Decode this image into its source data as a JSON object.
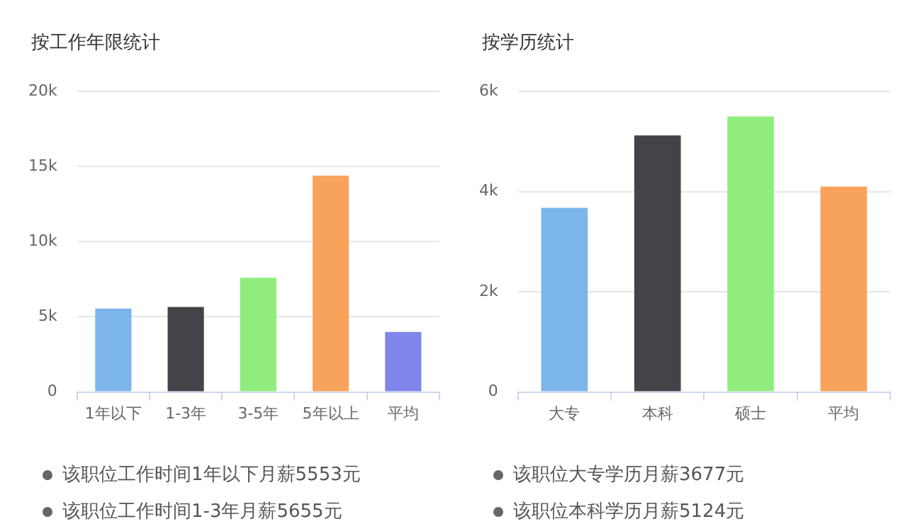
{
  "chart_data": [
    {
      "type": "bar",
      "title": "按工作年限统计",
      "categories": [
        "1年以下",
        "1-3年",
        "3-5年",
        "5年以上",
        "平均"
      ],
      "values": [
        5553,
        5655,
        7600,
        14400,
        4000
      ],
      "colors": [
        "#7cb5ec",
        "#434348",
        "#90ed7d",
        "#f7a35c",
        "#8085e9"
      ],
      "ylim": [
        0,
        20000
      ],
      "yticks": [
        {
          "value": 0,
          "label": "0"
        },
        {
          "value": 5000,
          "label": "5k"
        },
        {
          "value": 10000,
          "label": "10k"
        },
        {
          "value": 15000,
          "label": "15k"
        },
        {
          "value": 20000,
          "label": "20k"
        }
      ],
      "grid": "y",
      "annotations": [
        "该职位工作时间1年以下月薪5553元",
        "该职位工作时间1-3年月薪5655元"
      ]
    },
    {
      "type": "bar",
      "title": "按学历统计",
      "categories": [
        "大专",
        "本科",
        "硕士",
        "平均"
      ],
      "values": [
        3677,
        5124,
        5500,
        4100
      ],
      "colors": [
        "#7cb5ec",
        "#434348",
        "#90ed7d",
        "#f7a35c"
      ],
      "ylim": [
        0,
        6000
      ],
      "yticks": [
        {
          "value": 0,
          "label": "0"
        },
        {
          "value": 2000,
          "label": "2k"
        },
        {
          "value": 4000,
          "label": "4k"
        },
        {
          "value": 6000,
          "label": "6k"
        }
      ],
      "grid": "y",
      "annotations": [
        "该职位大专学历月薪3677元",
        "该职位本科学历月薪5124元"
      ]
    }
  ]
}
